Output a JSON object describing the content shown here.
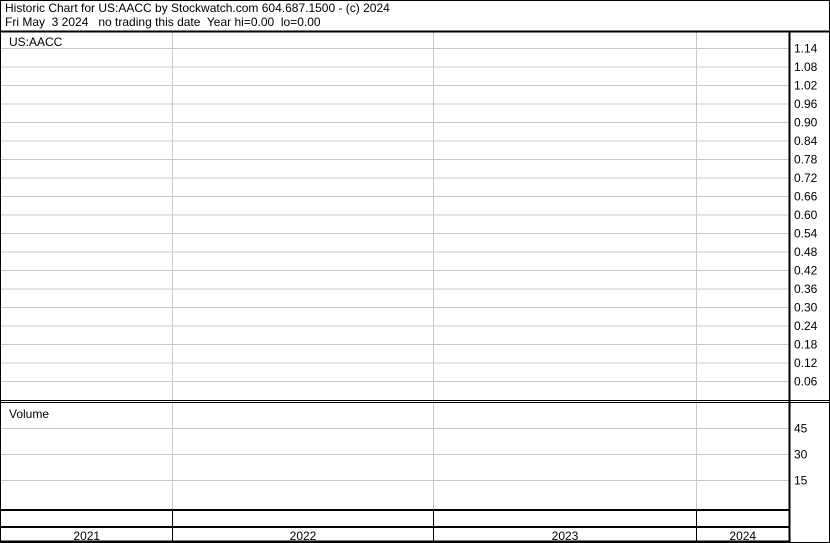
{
  "header": {
    "line1": "Historic Chart for US:AACC by Stockwatch.com 604.687.1500 - (c) 2024",
    "line2": "Fri May  3 2024   no trading this date  Year hi=0.00  lo=0.00"
  },
  "chart_data": [
    {
      "type": "line",
      "title": "US:AACC",
      "series": [],
      "y_ticks": [
        "1.14",
        "1.08",
        "1.02",
        "0.96",
        "0.90",
        "0.84",
        "0.78",
        "0.72",
        "0.66",
        "0.60",
        "0.54",
        "0.48",
        "0.42",
        "0.36",
        "0.30",
        "0.24",
        "0.18",
        "0.12",
        "0.06"
      ],
      "ylim": [
        0.0,
        1.17
      ],
      "grid": true,
      "axis_position": "right"
    },
    {
      "type": "bar",
      "title": "Volume",
      "series": [],
      "y_ticks": [
        "45",
        "30",
        "15"
      ],
      "ylim": [
        0,
        60
      ],
      "grid": true
    }
  ],
  "x_axis": {
    "categories": [
      "2021",
      "2022",
      "2023",
      "2024"
    ]
  },
  "colors": {
    "grid": "#c8c8c8",
    "border": "#000000",
    "background": "#ffffff"
  }
}
